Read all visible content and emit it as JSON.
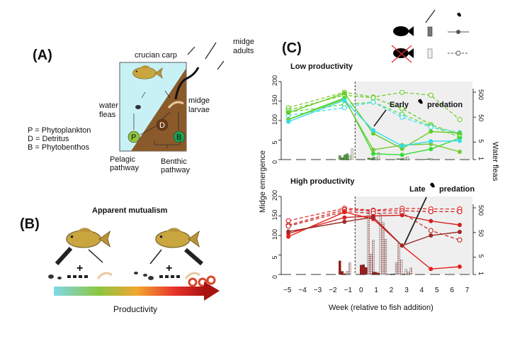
{
  "panel_a": {
    "label": "(A)",
    "crucian_carp": "crucian carp",
    "midge_adults": [
      "midge",
      "adults"
    ],
    "water_fleas": [
      "water",
      "fleas"
    ],
    "midge_larvae": [
      "midge",
      "larvae"
    ],
    "nodes": {
      "P": "P",
      "D": "D",
      "B": "B"
    },
    "legend": [
      "P = Phytoplankton",
      "D = Detritus",
      "B = Phytobenthos"
    ],
    "pelagic": [
      "Pelagic",
      "pathway"
    ],
    "benthic": [
      "Benthic",
      "pathway"
    ],
    "colors": {
      "water": "#c8f1f6",
      "sediment": "#8b5a2b",
      "P": "#8fc63f",
      "D": "#6b3a14",
      "B": "#1aa050"
    }
  },
  "panel_b": {
    "label": "(B)",
    "title": "Apparent mutualism",
    "plus": "+",
    "productivity": "Productivity",
    "gradient_colors": [
      "#7fd8e8",
      "#8cc63f",
      "#f2a531",
      "#e8322b",
      "#a8120f"
    ]
  },
  "panel_c": {
    "label": "(C)",
    "legend": {
      "rows": [
        "fish present",
        "fish absent"
      ],
      "cols": [
        "midge-icon",
        "water-flea-icon"
      ]
    },
    "ylabel_left": "Midge emergence",
    "ylabel_right": "Water fleas",
    "xlabel": "Week (relative to fish addition)",
    "annotation_low": [
      "Early",
      "predation"
    ],
    "annotation_high": [
      "Late",
      "predation"
    ]
  },
  "chart_data": [
    {
      "type": "line",
      "title": "Low productivity",
      "x_ticks": [
        "−5",
        "−4",
        "−3",
        "−2",
        "−1",
        "0",
        "1",
        "2",
        "3",
        "4",
        "5",
        "6",
        "7"
      ],
      "y_left_ticks": [
        "0",
        "5",
        "100",
        "150",
        "200"
      ],
      "y_left_lim": [
        0,
        200
      ],
      "y_right_ticks": [
        "1",
        "5",
        "50",
        "500"
      ],
      "y_right_scale": "log",
      "shaded_from_week": -0.5,
      "x": [
        -4.9,
        -1.2,
        0.7,
        2.6,
        4.5,
        6.4
      ],
      "midge_series": [
        {
          "color": "#66cc22",
          "values": [
            120,
            170,
            67,
            28,
            72,
            68
          ]
        },
        {
          "color": "#33dd33",
          "values": [
            103,
            158,
            15,
            12,
            27,
            55
          ]
        },
        {
          "color": "#77cc33",
          "values": [
            102,
            155,
            25,
            37,
            40,
            20
          ]
        },
        {
          "color": "#33ddee",
          "values": [
            97,
            152,
            75,
            35,
            47,
            48
          ]
        }
      ],
      "waterflea_series": [
        {
          "color": "#77cc33",
          "values": [
            120,
            500,
            320,
            490,
            380,
            40
          ]
        },
        {
          "color": "#66cc22",
          "values": [
            95,
            380,
            300,
            110,
            25,
            10
          ]
        },
        {
          "color": "#55dd44",
          "values": [
            80,
            160,
            200,
            65,
            22,
            8
          ]
        },
        {
          "color": "#44ddee",
          "values": [
            60,
            120,
            200,
            50,
            20,
            12
          ]
        }
      ],
      "bars": [
        {
          "week": -1.2,
          "values": [
            10,
            5,
            12,
            15
          ],
          "absent_values": [
            10,
            28
          ]
        },
        {
          "week": 0.7,
          "values": [
            4,
            3,
            6
          ],
          "absent_values": [
            5,
            18
          ]
        },
        {
          "week": 2.6,
          "values": [
            2,
            2,
            3
          ],
          "absent_values": [
            4,
            7
          ]
        },
        {
          "week": 4.5,
          "values": [
            1,
            2
          ],
          "absent_values": [
            3
          ]
        }
      ]
    },
    {
      "type": "line",
      "title": "High productivity",
      "x_ticks": [
        "−5",
        "−4",
        "−3",
        "−2",
        "−1",
        "0",
        "1",
        "2",
        "3",
        "4",
        "5",
        "6",
        "7"
      ],
      "y_left_ticks": [
        "0",
        "5",
        "100",
        "150",
        "200"
      ],
      "y_left_lim": [
        0,
        200
      ],
      "y_right_ticks": [
        "1",
        "5",
        "50",
        "500"
      ],
      "y_right_scale": "log",
      "shaded_from_week": -0.5,
      "x": [
        -4.9,
        -1.2,
        0.7,
        2.6,
        4.5,
        6.4
      ],
      "midge_series": [
        {
          "color": "#e8201a",
          "values": [
            97,
            160,
            142,
            74,
            14,
            20
          ]
        },
        {
          "color": "#d42020",
          "values": [
            105,
            146,
            150,
            152,
            137,
            127
          ]
        },
        {
          "color": "#9c2b2b",
          "values": [
            110,
            135,
            147,
            74,
            100,
            109
          ]
        }
      ],
      "waterflea_series": [
        {
          "color": "#e83030",
          "values": [
            150,
            480,
            400,
            480,
            450,
            450
          ]
        },
        {
          "color": "#d42020",
          "values": [
            100,
            420,
            380,
            380,
            350,
            350
          ]
        },
        {
          "color": "#c03030",
          "values": [
            90,
            350,
            300,
            310,
            60,
            25
          ]
        }
      ],
      "bars": [
        {
          "week": -1.2,
          "values": [
            35,
            8,
            2
          ],
          "absent_values": [
            8,
            30
          ]
        },
        {
          "week": 0.2,
          "values": [
            24,
            25,
            18
          ],
          "absent_values": [
            165,
            52,
            88
          ]
        },
        {
          "week": 1.0,
          "values": [
            6,
            6,
            4
          ],
          "absent_values": [
            155,
            133,
            90
          ]
        },
        {
          "week": 2.2,
          "values": [
            1,
            1
          ],
          "absent_values": [
            30,
            80,
            37
          ]
        },
        {
          "week": 3.0,
          "values": [
            1
          ],
          "absent_values": [
            13,
            6,
            17
          ]
        }
      ]
    }
  ]
}
